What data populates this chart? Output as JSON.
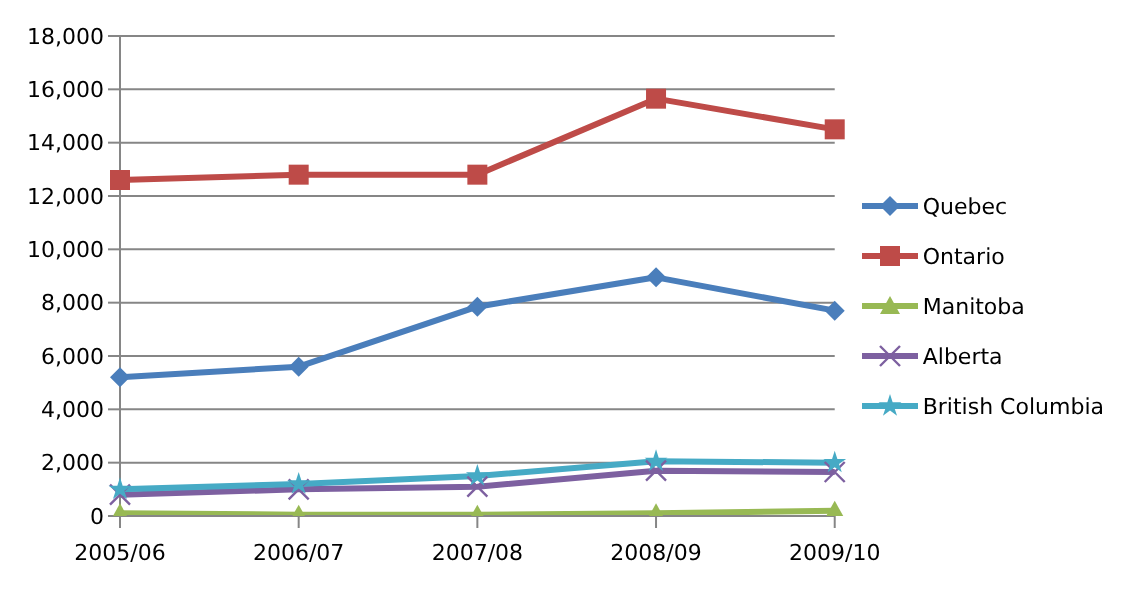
{
  "chart_data": {
    "type": "line",
    "categories": [
      "2005/06",
      "2006/07",
      "2007/08",
      "2008/09",
      "2009/10"
    ],
    "series": [
      {
        "name": "Quebec",
        "color": "#4a7ebb",
        "marker": "diamond",
        "values": [
          5200,
          5600,
          7850,
          8950,
          7700
        ]
      },
      {
        "name": "Ontario",
        "color": "#be4b48",
        "marker": "square",
        "values": [
          12600,
          12800,
          12800,
          15650,
          14500
        ]
      },
      {
        "name": "Manitoba",
        "color": "#98b954",
        "marker": "triangle",
        "values": [
          100,
          50,
          50,
          100,
          200
        ]
      },
      {
        "name": "Alberta",
        "color": "#7d60a0",
        "marker": "cross",
        "values": [
          800,
          1000,
          1100,
          1700,
          1650
        ]
      },
      {
        "name": "British Columbia",
        "color": "#46aac5",
        "marker": "star",
        "values": [
          1000,
          1200,
          1500,
          2050,
          2000
        ]
      }
    ],
    "ylim": [
      0,
      18000
    ],
    "yticks": [
      0,
      {
        "value": 2000,
        "label": "2,000"
      },
      {
        "value": 4000,
        "label": "4,000"
      },
      {
        "value": 6000,
        "label": "6,000"
      },
      {
        "value": 8000,
        "label": "8,000"
      },
      {
        "value": 10000,
        "label": "10,000"
      },
      {
        "value": 12000,
        "label": "12,000"
      },
      {
        "value": 14000,
        "label": "14,000"
      },
      {
        "value": 16000,
        "label": "16,000"
      },
      {
        "value": 18000,
        "label": "18,000"
      }
    ],
    "grid": "y",
    "legend": "right",
    "line_style": "solid"
  }
}
